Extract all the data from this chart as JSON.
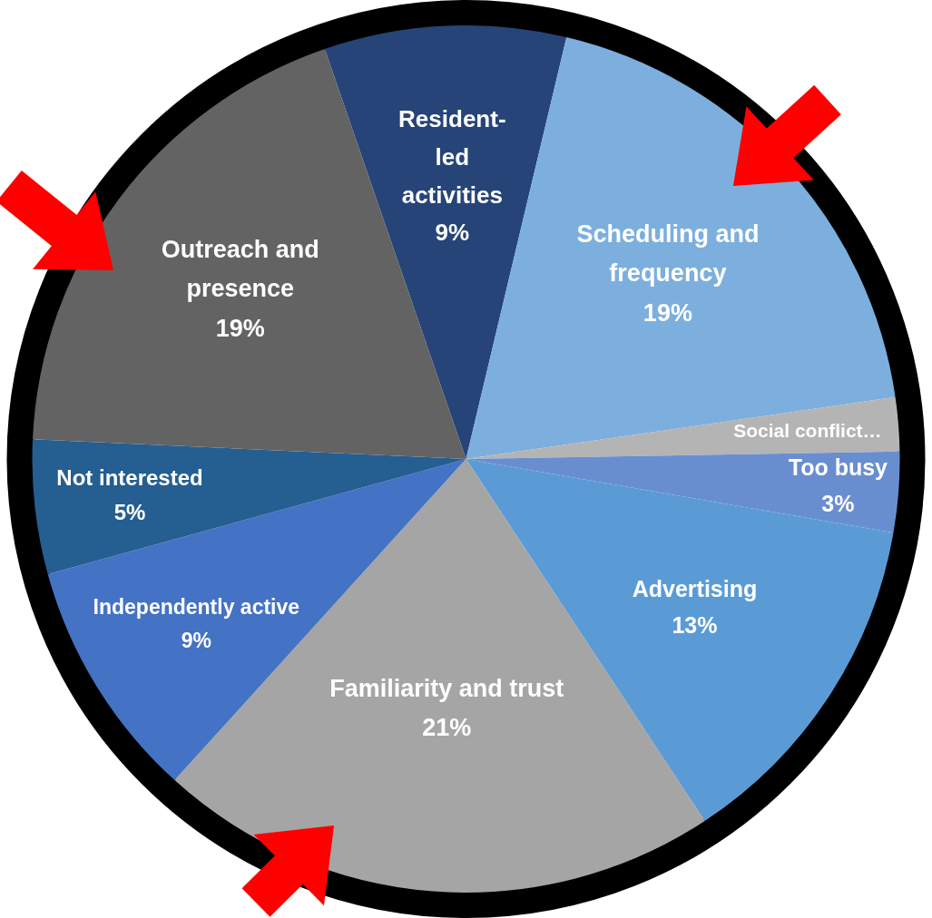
{
  "chart_data": {
    "type": "pie",
    "categories": [
      "Resident-led activities",
      "Scheduling and frequency",
      "Social conflict…",
      "Too busy",
      "Advertising",
      "Familiarity and trust",
      "Independently active",
      "Not interested",
      "Outreach and presence"
    ],
    "values": [
      9,
      19,
      2,
      3,
      13,
      21,
      9,
      5,
      19
    ],
    "value_labels": [
      "9%",
      "19%",
      null,
      "3%",
      "13%",
      "21%",
      "9%",
      "5%",
      "19%"
    ],
    "colors": [
      "#264478",
      "#7cafdd",
      "#b4b4b4",
      "#698ed0",
      "#5b9bd5",
      "#a5a5a5",
      "#4472c4",
      "#255e91",
      "#636363"
    ],
    "legend": false
  }
}
